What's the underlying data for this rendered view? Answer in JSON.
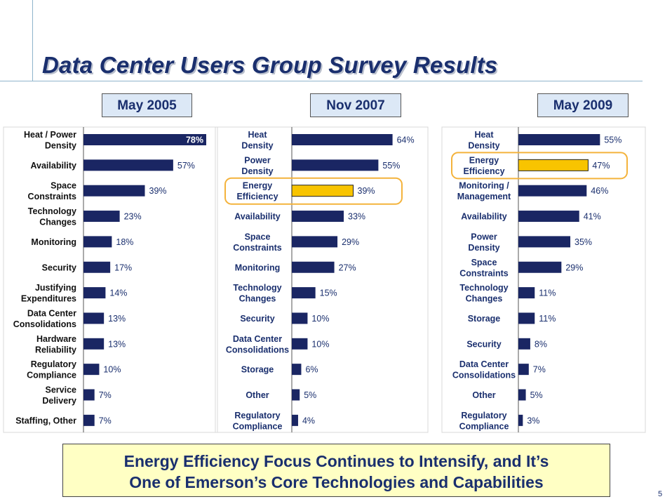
{
  "title": "Data Center Users Group Survey Results",
  "footer": {
    "line1": "Energy Efficiency Focus Continues to Intensify, and It’s",
    "line2": "One of Emerson’s Core Technologies and Capabilities"
  },
  "page_number": "5",
  "colors": {
    "bar": "#1a2663",
    "highlight_bar": "#f8c400",
    "highlight_border": "#f4b33c",
    "text": "#1a2f6e"
  },
  "chart_data": [
    {
      "type": "bar",
      "orientation": "horizontal",
      "title": "May 2005",
      "xlim": [
        0,
        78
      ],
      "categories": [
        [
          "Heat / Power",
          "Density"
        ],
        [
          "Availability"
        ],
        [
          "Space",
          "Constraints"
        ],
        [
          "Technology",
          "Changes"
        ],
        [
          "Monitoring"
        ],
        [
          "Security"
        ],
        [
          "Justifying",
          "Expenditures"
        ],
        [
          "Data Center",
          "Consolidations"
        ],
        [
          "Hardware",
          "Reliability"
        ],
        [
          "Regulatory",
          "Compliance"
        ],
        [
          "Service",
          "Delivery"
        ],
        [
          "Staffing, Other"
        ]
      ],
      "values": [
        78,
        57,
        39,
        23,
        18,
        17,
        14,
        13,
        13,
        10,
        7,
        7
      ],
      "labels": [
        "78%",
        "57%",
        "39%",
        "23%",
        "18%",
        "17%",
        "14%",
        "13%",
        "13%",
        "10%",
        "7%",
        "7%"
      ],
      "highlight_index": -1
    },
    {
      "type": "bar",
      "orientation": "horizontal",
      "title": "Nov 2007",
      "xlim": [
        0,
        78
      ],
      "categories": [
        [
          "Heat",
          "Density"
        ],
        [
          "Power",
          "Density"
        ],
        [
          "Energy",
          "Efficiency"
        ],
        [
          "Availability"
        ],
        [
          "Space",
          "Constraints"
        ],
        [
          "Monitoring"
        ],
        [
          "Technology",
          "Changes"
        ],
        [
          "Security"
        ],
        [
          "Data Center",
          "Consolidations"
        ],
        [
          "Storage"
        ],
        [
          "Other"
        ],
        [
          "Regulatory",
          "Compliance"
        ]
      ],
      "values": [
        64,
        55,
        39,
        33,
        29,
        27,
        15,
        10,
        10,
        6,
        5,
        4
      ],
      "labels": [
        "64%",
        "55%",
        "39%",
        "33%",
        "29%",
        "27%",
        "15%",
        "10%",
        "10%",
        "6%",
        "5%",
        "4%"
      ],
      "highlight_index": 2
    },
    {
      "type": "bar",
      "orientation": "horizontal",
      "title": "May 2009",
      "xlim": [
        0,
        78
      ],
      "categories": [
        [
          "Heat",
          "Density"
        ],
        [
          "Energy",
          "Efficiency"
        ],
        [
          "Monitoring /",
          "Management"
        ],
        [
          "Availability"
        ],
        [
          "Power",
          "Density"
        ],
        [
          "Space",
          "Constraints"
        ],
        [
          "Technology",
          "Changes"
        ],
        [
          "Storage"
        ],
        [
          "Security"
        ],
        [
          "Data Center",
          "Consolidations"
        ],
        [
          "Other"
        ],
        [
          "Regulatory",
          "Compliance"
        ]
      ],
      "values": [
        55,
        47,
        46,
        41,
        35,
        29,
        11,
        11,
        8,
        7,
        5,
        3
      ],
      "labels": [
        "55%",
        "47%",
        "46%",
        "41%",
        "35%",
        "29%",
        "11%",
        "11%",
        "8%",
        "7%",
        "5%",
        "3%"
      ],
      "highlight_index": 1
    }
  ]
}
